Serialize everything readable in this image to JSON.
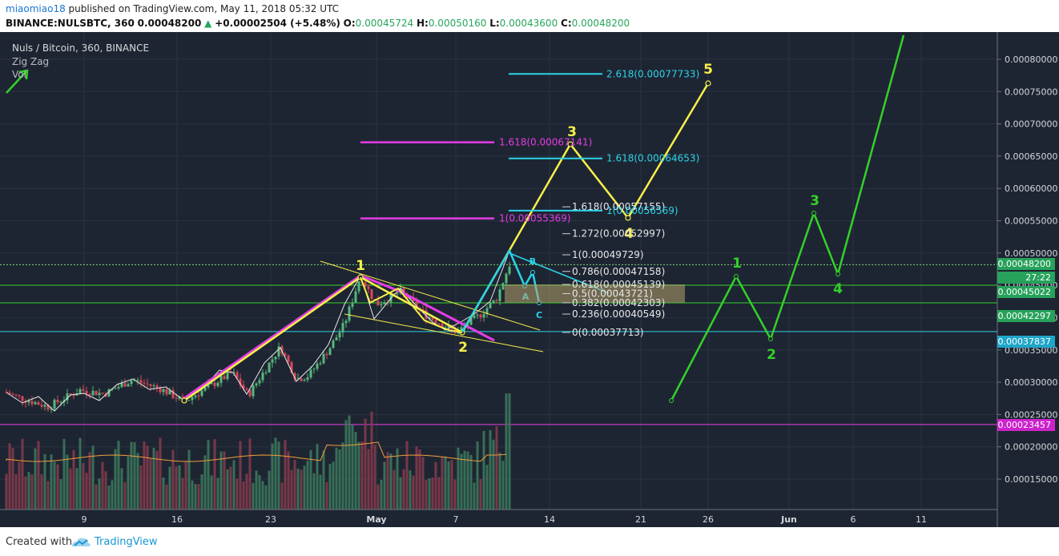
{
  "header": {
    "published_by": "miaomiao18",
    "published_text": "published on TradingView.com, May 11, 2018 05:32 UTC",
    "symbol": "BINANCE:NULSBTC, 360",
    "price": "0.00048200",
    "change": "+0.00002504 (+5.48%)",
    "o_label": "O:",
    "o_value": "0.00045724",
    "h_label": "H:",
    "h_value": "0.00050160",
    "l_label": "L:",
    "l_value": "0.00043600",
    "c_label": "C:",
    "c_value": "0.00048200"
  },
  "legend": {
    "title": "Nuls / Bitcoin, 360, BINANCE",
    "indicator1": "Zig Zag",
    "indicator2": "Vol"
  },
  "footer": {
    "created_with": "Created with",
    "brand": "TradingView"
  },
  "chart_data": {
    "type": "candlestick",
    "title": "Nuls / Bitcoin, 360, BINANCE",
    "y_axis": {
      "ticks": [
        "0.00080000",
        "0.00075000",
        "0.00070000",
        "0.00065000",
        "0.00060000",
        "0.00055000",
        "0.00050000",
        "0.00045000",
        "0.00040000",
        "0.00035000",
        "0.00030000",
        "0.00025000",
        "0.00020000",
        "0.00015000"
      ],
      "range": [
        0.00011,
        0.00083
      ]
    },
    "x_axis": {
      "ticks": [
        "9",
        "16",
        "23",
        "May",
        "7",
        "14",
        "21",
        "26",
        "Jun",
        "6",
        "11"
      ]
    },
    "price_labels": [
      {
        "text": "0.00048200",
        "bg": "#27a25b"
      },
      {
        "text": "27:22",
        "bg": "#27a25b"
      },
      {
        "text": "0.00045022",
        "bg": "#27a25b"
      },
      {
        "text": "0.00042297",
        "bg": "#27a25b"
      },
      {
        "text": "0.00037837",
        "bg": "#1fa6c9"
      },
      {
        "text": "0.00023457",
        "bg": "#cc22cc"
      }
    ],
    "fib_retracement": [
      {
        "label": "1.618(0.00057155)",
        "value": 0.00057155
      },
      {
        "label": "1.272(0.00052997)",
        "value": 0.00052997
      },
      {
        "label": "1(0.00049729)",
        "value": 0.00049729
      },
      {
        "label": "0.786(0.00047158)",
        "value": 0.00047158
      },
      {
        "label": "0.618(0.00045139)",
        "value": 0.00045139
      },
      {
        "label": "0.5(0.00043721)",
        "value": 0.00043721
      },
      {
        "label": "0.382(0.00042303)",
        "value": 0.00042303
      },
      {
        "label": "0.236(0.00040549)",
        "value": 0.00040549
      },
      {
        "label": "0(0.00037713)",
        "value": 0.00037713
      }
    ],
    "fib_extensions_cyan": [
      {
        "label": "2.618(0.00077733)",
        "value": 0.00077733
      },
      {
        "label": "1.618(0.00064653)",
        "value": 0.00064653
      },
      {
        "label": "1(0.00056569)",
        "value": 0.00056569
      }
    ],
    "fib_extensions_magenta": [
      {
        "label": "1.618(0.00067141)",
        "value": 0.00067141
      },
      {
        "label": "1(0.00055369)",
        "value": 0.00055369
      }
    ],
    "wave_labels_yellow": [
      "1",
      "2",
      "3",
      "4",
      "5"
    ],
    "wave_labels_cyan": [
      "A",
      "B",
      "C"
    ],
    "wave_labels_green": [
      "1",
      "2",
      "3",
      "4"
    ],
    "colors": {
      "up": "#55b87b",
      "down": "#d9465b",
      "yellow": "#f5f04a",
      "magenta": "#e63ce6",
      "cyan": "#2bd3e8",
      "green": "#33d12a"
    }
  }
}
